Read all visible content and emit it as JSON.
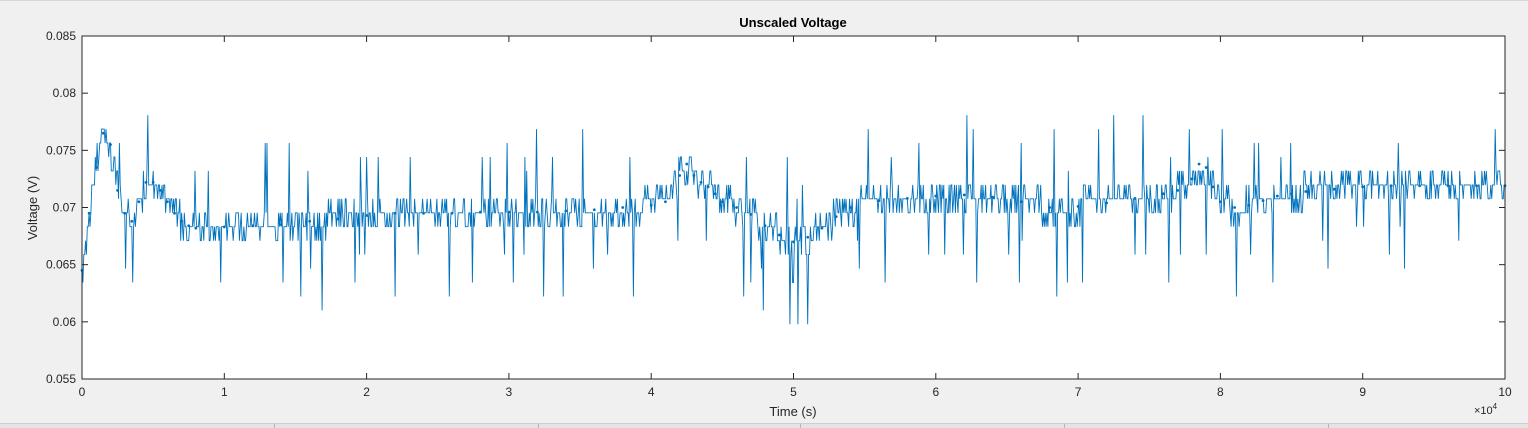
{
  "chart_data": {
    "type": "line",
    "title": "Unscaled Voltage",
    "xlabel": "Time (s)",
    "ylabel": "Voltage (V)",
    "x_multiplier_label": "×10",
    "x_multiplier_exponent": "4",
    "xlim": [
      0,
      100000
    ],
    "ylim": [
      0.055,
      0.085
    ],
    "x_ticks": [
      0,
      10000,
      20000,
      30000,
      40000,
      50000,
      60000,
      70000,
      80000,
      90000,
      100000
    ],
    "x_tick_labels": [
      "0",
      "1",
      "2",
      "3",
      "4",
      "5",
      "6",
      "7",
      "8",
      "9",
      "10"
    ],
    "y_ticks": [
      0.055,
      0.06,
      0.065,
      0.07,
      0.075,
      0.08,
      0.085
    ],
    "y_tick_labels": [
      "0.055",
      "0.06",
      "0.065",
      "0.07",
      "0.075",
      "0.08",
      "0.085"
    ],
    "grid": false,
    "marker": "dot",
    "series": [
      {
        "color": "#0072bd",
        "x": [
          0,
          500,
          1000,
          1500,
          2000,
          2500,
          3000,
          3500,
          4000,
          4500,
          5000,
          5500,
          6000,
          6500,
          7000,
          7500,
          8000,
          10000,
          12000,
          14000,
          16000,
          18000,
          20000,
          22000,
          24000,
          26000,
          28000,
          30000,
          32000,
          34000,
          36000,
          38000,
          40000,
          41000,
          42000,
          42500,
          43000,
          43500,
          44000,
          44500,
          45000,
          46000,
          47000,
          48000,
          49000,
          50000,
          51000,
          52000,
          53000,
          54000,
          56000,
          58000,
          60000,
          62000,
          64000,
          66000,
          68000,
          70000,
          72000,
          74000,
          76000,
          77000,
          78000,
          78500,
          79000,
          79500,
          80000,
          81000,
          82000,
          83000,
          84000,
          85000,
          86000,
          88000,
          90000,
          92000,
          94000,
          96000,
          98000,
          100000
        ],
        "y": [
          0.0645,
          0.0695,
          0.0735,
          0.0765,
          0.0755,
          0.0715,
          0.0695,
          0.0688,
          0.0705,
          0.0722,
          0.0722,
          0.0715,
          0.0705,
          0.0695,
          0.0688,
          0.0684,
          0.0682,
          0.0683,
          0.0684,
          0.0685,
          0.0688,
          0.069,
          0.0693,
          0.0695,
          0.0695,
          0.0695,
          0.0696,
          0.0696,
          0.0696,
          0.0697,
          0.0698,
          0.07,
          0.0702,
          0.0705,
          0.0728,
          0.0738,
          0.0728,
          0.0722,
          0.0718,
          0.0712,
          0.0705,
          0.07,
          0.0694,
          0.0684,
          0.0676,
          0.067,
          0.0674,
          0.0682,
          0.0692,
          0.07,
          0.0706,
          0.0708,
          0.071,
          0.0711,
          0.0709,
          0.0705,
          0.07,
          0.0701,
          0.0704,
          0.0708,
          0.0712,
          0.0715,
          0.0725,
          0.0738,
          0.0735,
          0.0718,
          0.0705,
          0.07,
          0.0702,
          0.0706,
          0.071,
          0.0712,
          0.0714,
          0.0716,
          0.0718,
          0.0719,
          0.0719,
          0.0719,
          0.0719,
          0.0719
        ]
      }
    ]
  }
}
